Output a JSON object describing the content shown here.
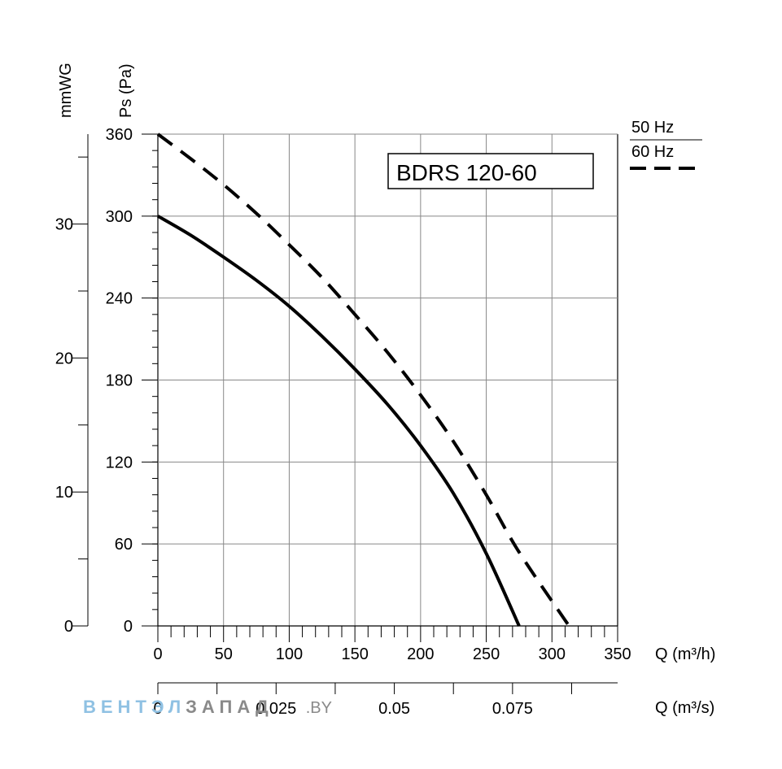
{
  "chart_data": {
    "type": "line",
    "title": "BDRS 120-60",
    "xlabel": "Q (m³/h)",
    "x2label": "Q (m³/s)",
    "ylabel": "Ps (Pa)",
    "y2label": "mmWG",
    "xlim": [
      0,
      350
    ],
    "ylim": [
      0,
      360
    ],
    "x_ticks": [
      "0",
      "50",
      "100",
      "150",
      "200",
      "250",
      "300",
      "350"
    ],
    "x2_ticks": [
      "0",
      "0.025",
      "0.05",
      "0.075"
    ],
    "y_ticks": [
      "0",
      "60",
      "120",
      "180",
      "240",
      "300",
      "360"
    ],
    "y2_ticks": [
      "0",
      "10",
      "20",
      "30"
    ],
    "grid": true,
    "legend_position": "top-right",
    "series": [
      {
        "name": "50 Hz",
        "style": "solid",
        "color": "#000000",
        "points": [
          [
            0,
            300
          ],
          [
            25,
            286
          ],
          [
            50,
            270
          ],
          [
            75,
            253
          ],
          [
            100,
            234
          ],
          [
            125,
            212
          ],
          [
            150,
            188
          ],
          [
            175,
            162
          ],
          [
            200,
            132
          ],
          [
            225,
            97
          ],
          [
            250,
            53
          ],
          [
            275,
            0
          ]
        ]
      },
      {
        "name": "60 Hz",
        "style": "dashed",
        "color": "#000000",
        "points": [
          [
            0,
            360
          ],
          [
            25,
            342
          ],
          [
            50,
            323
          ],
          [
            75,
            302
          ],
          [
            100,
            279
          ],
          [
            125,
            255
          ],
          [
            150,
            228
          ],
          [
            175,
            200
          ],
          [
            200,
            169
          ],
          [
            225,
            135
          ],
          [
            250,
            96
          ],
          [
            275,
            54
          ],
          [
            313,
            0
          ]
        ]
      }
    ]
  },
  "watermark": {
    "part1": "ВЕНТЭЛ",
    "part2": "ЗАПАД",
    "part3": ".BY",
    "color1": "#8fc1e3",
    "color2": "#8a8a8a"
  }
}
